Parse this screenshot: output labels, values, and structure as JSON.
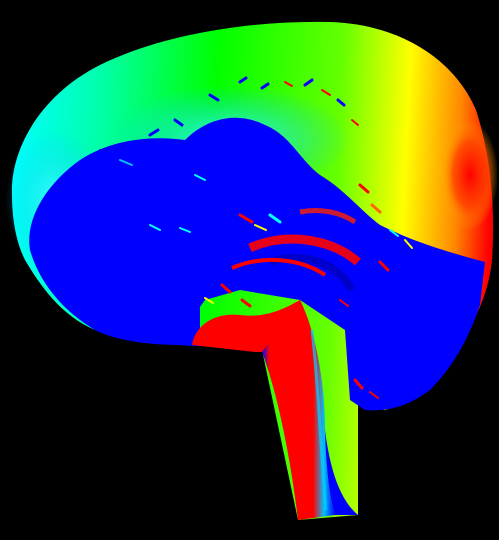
{
  "image": {
    "subject": "sagittal-brain-colormap",
    "background": "#000000",
    "palette": {
      "blue": "#0000ff",
      "cyan": "#00ffff",
      "green": "#00ff00",
      "yellow": "#ffff00",
      "red": "#ff0000"
    }
  }
}
